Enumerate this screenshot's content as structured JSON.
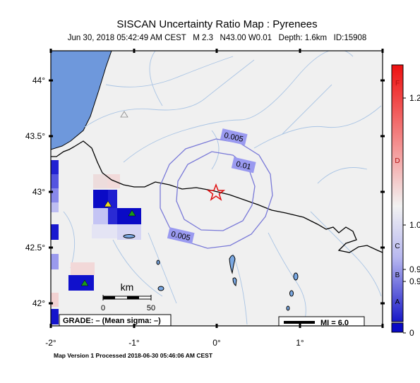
{
  "title": "SISCAN Uncertainty Ratio Map : Pyrenees",
  "subtitle": "Jun 30, 2018 05:42:49 AM CEST   M 2.3   N43.00 W0.01   Depth: 1.6km   ID:15908",
  "footer": "Map Version 1 Processed 2018-06-30 05:46:06 AM CEST",
  "lat_ticks": [
    "44°",
    "43.5°",
    "43°",
    "42.5°",
    "42°"
  ],
  "lon_ticks": [
    "-2°",
    "-1°",
    "0°",
    "1°"
  ],
  "contours": [
    "0.005",
    "0.01",
    "0.005"
  ],
  "scale": {
    "unit": "km",
    "zero": "0",
    "max": "50"
  },
  "grade_label": "GRADE: – (Mean sigma: –)",
  "mi_label": "MI = 6.0",
  "colorbar": {
    "letters": [
      "F",
      "D",
      "C",
      "B",
      "A"
    ],
    "values": [
      "1.2",
      "1.0",
      "0.9",
      "0.9",
      "0"
    ]
  },
  "epicenter": {
    "lat": 43.0,
    "lon": -0.01
  }
}
